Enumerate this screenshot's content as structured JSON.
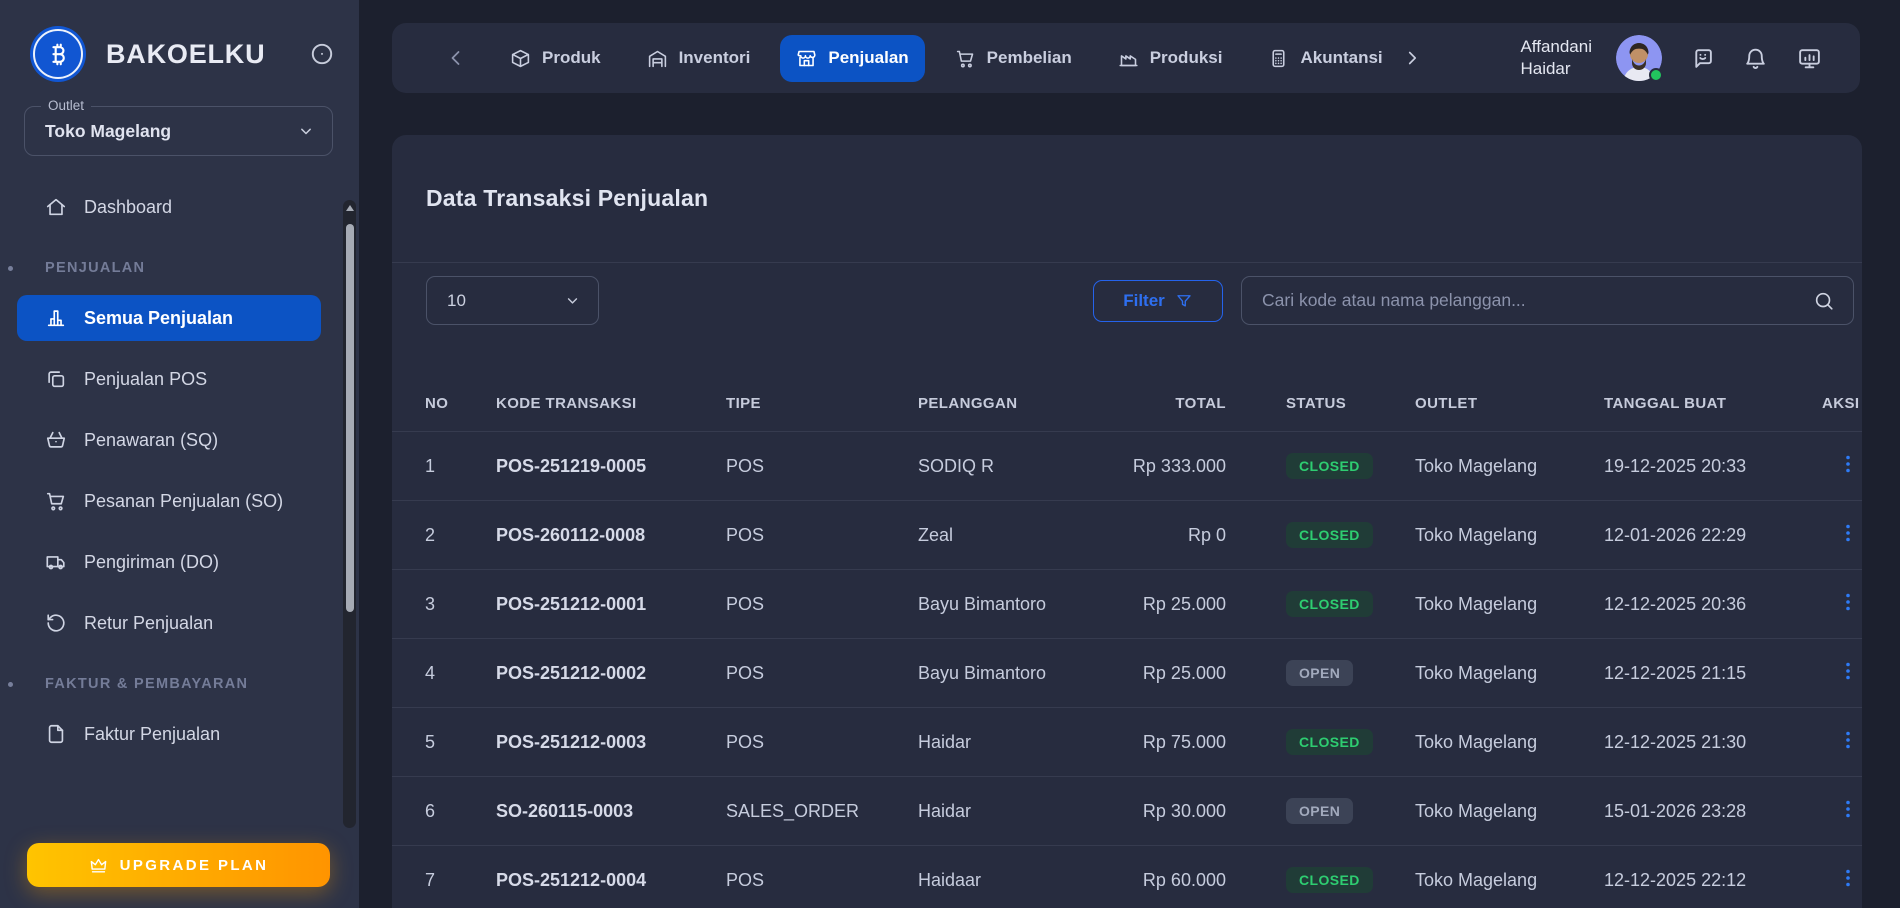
{
  "brand": {
    "name": "BAKOELKU"
  },
  "sidebar": {
    "outlet": {
      "label": "Outlet",
      "value": "Toko Magelang"
    },
    "dashboard": {
      "label": "Dashboard",
      "icon": "home"
    },
    "sections": [
      {
        "title": "PENJUALAN",
        "items": [
          {
            "label": "Semua Penjualan",
            "icon": "bar-chart",
            "active": true
          },
          {
            "label": "Penjualan POS",
            "icon": "pos-copy",
            "active": false
          },
          {
            "label": "Penawaran (SQ)",
            "icon": "basket",
            "active": false
          },
          {
            "label": "Pesanan Penjualan (SO)",
            "icon": "cart",
            "active": false
          },
          {
            "label": "Pengiriman (DO)",
            "icon": "truck",
            "active": false
          },
          {
            "label": "Retur Penjualan",
            "icon": "rotate",
            "active": false
          }
        ]
      },
      {
        "title": "FAKTUR & PEMBAYARAN",
        "items": [
          {
            "label": "Faktur Penjualan",
            "icon": "file",
            "active": false
          }
        ]
      }
    ],
    "upgrade": {
      "label": "UPGRADE PLAN",
      "icon": "crown"
    }
  },
  "topnav": {
    "tabs": [
      {
        "label": "Produk",
        "icon": "cube",
        "active": false
      },
      {
        "label": "Inventori",
        "icon": "warehouse",
        "active": false
      },
      {
        "label": "Penjualan",
        "icon": "store",
        "active": true
      },
      {
        "label": "Pembelian",
        "icon": "cart",
        "active": false
      },
      {
        "label": "Produksi",
        "icon": "factory",
        "active": false
      },
      {
        "label": "Akuntansi",
        "icon": "calculator",
        "active": false
      }
    ],
    "user": {
      "first": "Affandani",
      "last": "Haidar"
    },
    "action_icons": [
      "chat",
      "bell",
      "monitor"
    ]
  },
  "main": {
    "title": "Data Transaksi Penjualan",
    "page_size": "10",
    "filter_label": "Filter",
    "search_placeholder": "Cari kode atau nama pelanggan...",
    "table": {
      "columns": [
        "NO",
        "KODE TRANSAKSI",
        "TIPE",
        "PELANGGAN",
        "TOTAL",
        "STATUS",
        "OUTLET",
        "TANGGAL BUAT",
        "AKSI"
      ],
      "rows": [
        {
          "no": "1",
          "kode": "POS-251219-0005",
          "tipe": "POS",
          "pelanggan": "SODIQ R",
          "total": "Rp 333.000",
          "status": "CLOSED",
          "outlet": "Toko Magelang",
          "tanggal": "19-12-2025 20:33"
        },
        {
          "no": "2",
          "kode": "POS-260112-0008",
          "tipe": "POS",
          "pelanggan": "Zeal",
          "total": "Rp 0",
          "status": "CLOSED",
          "outlet": "Toko Magelang",
          "tanggal": "12-01-2026 22:29"
        },
        {
          "no": "3",
          "kode": "POS-251212-0001",
          "tipe": "POS",
          "pelanggan": "Bayu Bimantoro",
          "total": "Rp 25.000",
          "status": "CLOSED",
          "outlet": "Toko Magelang",
          "tanggal": "12-12-2025 20:36"
        },
        {
          "no": "4",
          "kode": "POS-251212-0002",
          "tipe": "POS",
          "pelanggan": "Bayu Bimantoro",
          "total": "Rp 25.000",
          "status": "OPEN",
          "outlet": "Toko Magelang",
          "tanggal": "12-12-2025 21:15"
        },
        {
          "no": "5",
          "kode": "POS-251212-0003",
          "tipe": "POS",
          "pelanggan": "Haidar",
          "total": "Rp 75.000",
          "status": "CLOSED",
          "outlet": "Toko Magelang",
          "tanggal": "12-12-2025 21:30"
        },
        {
          "no": "6",
          "kode": "SO-260115-0003",
          "tipe": "SALES_ORDER",
          "pelanggan": "Haidar",
          "total": "Rp 30.000",
          "status": "OPEN",
          "outlet": "Toko Magelang",
          "tanggal": "15-01-2026 23:28"
        },
        {
          "no": "7",
          "kode": "POS-251212-0004",
          "tipe": "POS",
          "pelanggan": "Haidaar",
          "total": "Rp 60.000",
          "status": "CLOSED",
          "outlet": "Toko Magelang",
          "tanggal": "12-12-2025 22:12"
        }
      ]
    }
  },
  "colors": {
    "accent_blue": "#0c53c4",
    "link_blue": "#2e7bf6",
    "closed_green": "#2ecd71",
    "open_gray": "#a2aabd",
    "upgrade_gold_start": "#ffc400",
    "upgrade_gold_end": "#ff9400",
    "sidebar_bg": "#2d3347",
    "panel_bg": "#272c3f",
    "page_bg": "#1c202e"
  }
}
